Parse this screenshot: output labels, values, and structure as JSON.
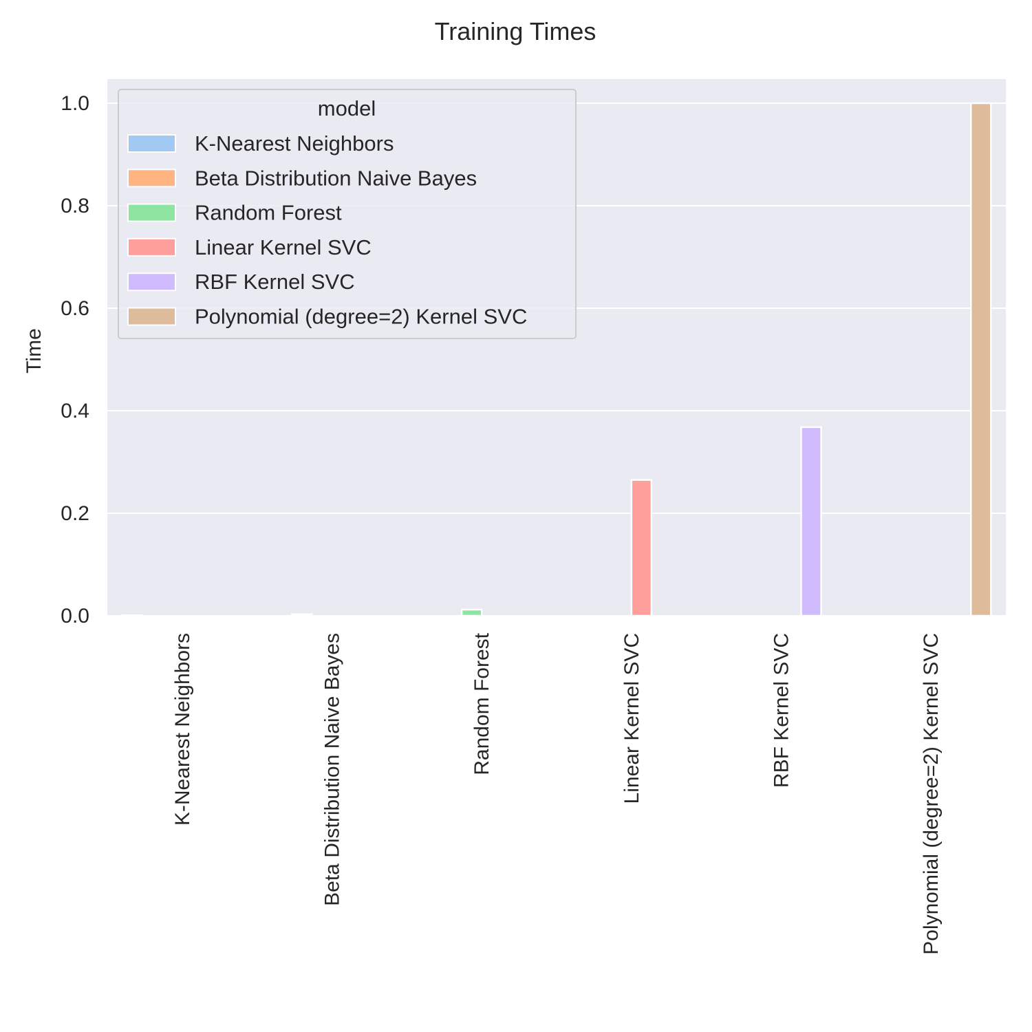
{
  "chart_data": {
    "type": "bar",
    "title": "Training Times",
    "xlabel": "",
    "ylabel": "Time",
    "categories": [
      "K-Nearest Neighbors",
      "Beta Distribution Naive Bayes",
      "Random Forest",
      "Linear Kernel SVC",
      "RBF Kernel SVC",
      "Polynomial (degree=2) Kernel SVC"
    ],
    "hue_title": "model",
    "series": [
      {
        "name": "K-Nearest Neighbors",
        "color": "#a1c9f4",
        "values": [
          0.001,
          0,
          0,
          0,
          0,
          0
        ]
      },
      {
        "name": "Beta Distribution Naive Bayes",
        "color": "#ffb482",
        "values": [
          0,
          0.003,
          0,
          0,
          0,
          0
        ]
      },
      {
        "name": "Random Forest",
        "color": "#8de5a1",
        "values": [
          0,
          0,
          0.012,
          0,
          0,
          0
        ]
      },
      {
        "name": "Linear Kernel SVC",
        "color": "#ff9f9b",
        "values": [
          0,
          0,
          0,
          0.265,
          0,
          0
        ]
      },
      {
        "name": "RBF Kernel SVC",
        "color": "#d0bbff",
        "values": [
          0,
          0,
          0,
          0,
          0.368,
          0
        ]
      },
      {
        "name": "Polynomial (degree=2) Kernel SVC",
        "color": "#debb9b",
        "values": [
          0,
          0,
          0,
          0,
          0,
          1.0
        ]
      }
    ],
    "yticks": [
      "0.0",
      "0.2",
      "0.4",
      "0.6",
      "0.8",
      "1.0"
    ],
    "ylim": [
      0,
      1.05
    ],
    "grid": true,
    "legend_position": "top-left",
    "background_color": "#eaeaf2"
  }
}
